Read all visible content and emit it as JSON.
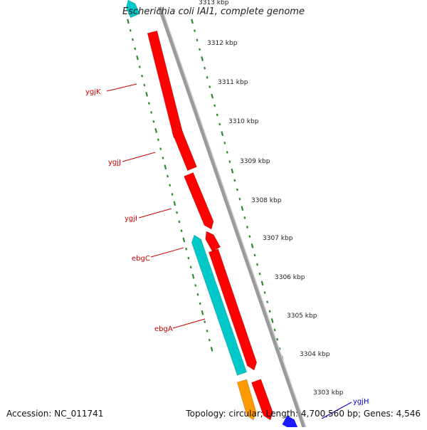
{
  "title": "Escherichia coli IAI1, complete genome",
  "footer": {
    "accession": "Accession: NC_011741",
    "summary": "Topology: circular; Length: 4,700,560 bp; Genes: 4,546"
  },
  "colors": {
    "forward_gene": "#ff0000",
    "reverse_gene": "#00c8c8",
    "orange_gene": "#ff9900",
    "blue_gene": "#1a1aff",
    "label_red": "#cc0000",
    "label_blue": "#0000cc",
    "tick": "#2f8a2f",
    "backbone": "#8c8c8c"
  },
  "scale_labels": [
    "3313 kbp",
    "3312 kbp",
    "3311 kbp",
    "3310 kbp",
    "3309 kbp",
    "3308 kbp",
    "3307 kbp",
    "3306 kbp",
    "3305 kbp",
    "3304 kbp",
    "3303 kbp"
  ],
  "gene_labels": [
    {
      "text": "ygjK",
      "color": "red"
    },
    {
      "text": "ygjJ",
      "color": "red"
    },
    {
      "text": "ygjI",
      "color": "red"
    },
    {
      "text": "ebgC",
      "color": "red"
    },
    {
      "text": "ebgA",
      "color": "red"
    },
    {
      "text": "ygjH",
      "color": "blue"
    }
  ]
}
